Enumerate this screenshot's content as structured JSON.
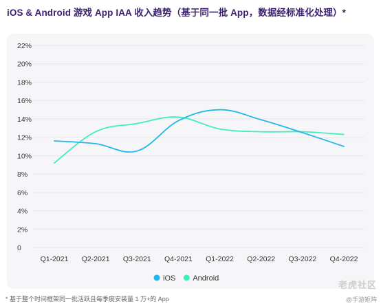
{
  "title": "iOS & Android 游戏 App IAA 收入趋势（基于同一批 App，数据经标准化处理）*",
  "footnote": "* 基于整个时间框架同一批活跃且每季度安装量 1 万+的 App",
  "watermark": {
    "text": "老虎社区",
    "sub": "@手游矩阵"
  },
  "colors": {
    "ios": "#1fb8e8",
    "android": "#3ef0b8",
    "grid": "#e6e6ec",
    "title": "#3a1f6e"
  },
  "chart_data": {
    "type": "line",
    "categories": [
      "Q1-2021",
      "Q2-2021",
      "Q3-2021",
      "Q4-2021",
      "Q1-2022",
      "Q2-2022",
      "Q3-2022",
      "Q4-2022"
    ],
    "y_ticks": [
      "0",
      "2%",
      "4%",
      "6%",
      "8%",
      "10%",
      "12%",
      "14%",
      "16%",
      "18%",
      "20%",
      "22%"
    ],
    "ylim": [
      0,
      22
    ],
    "grid": "horizontal",
    "legend_position": "bottom-center",
    "series": [
      {
        "name": "iOS",
        "color": "#1fb8e8",
        "values": [
          11.6,
          11.3,
          10.5,
          13.8,
          15.0,
          13.9,
          12.5,
          11.0
        ]
      },
      {
        "name": "Android",
        "color": "#3ef0b8",
        "values": [
          9.2,
          12.6,
          13.5,
          14.2,
          12.9,
          12.6,
          12.6,
          12.3
        ]
      }
    ]
  }
}
